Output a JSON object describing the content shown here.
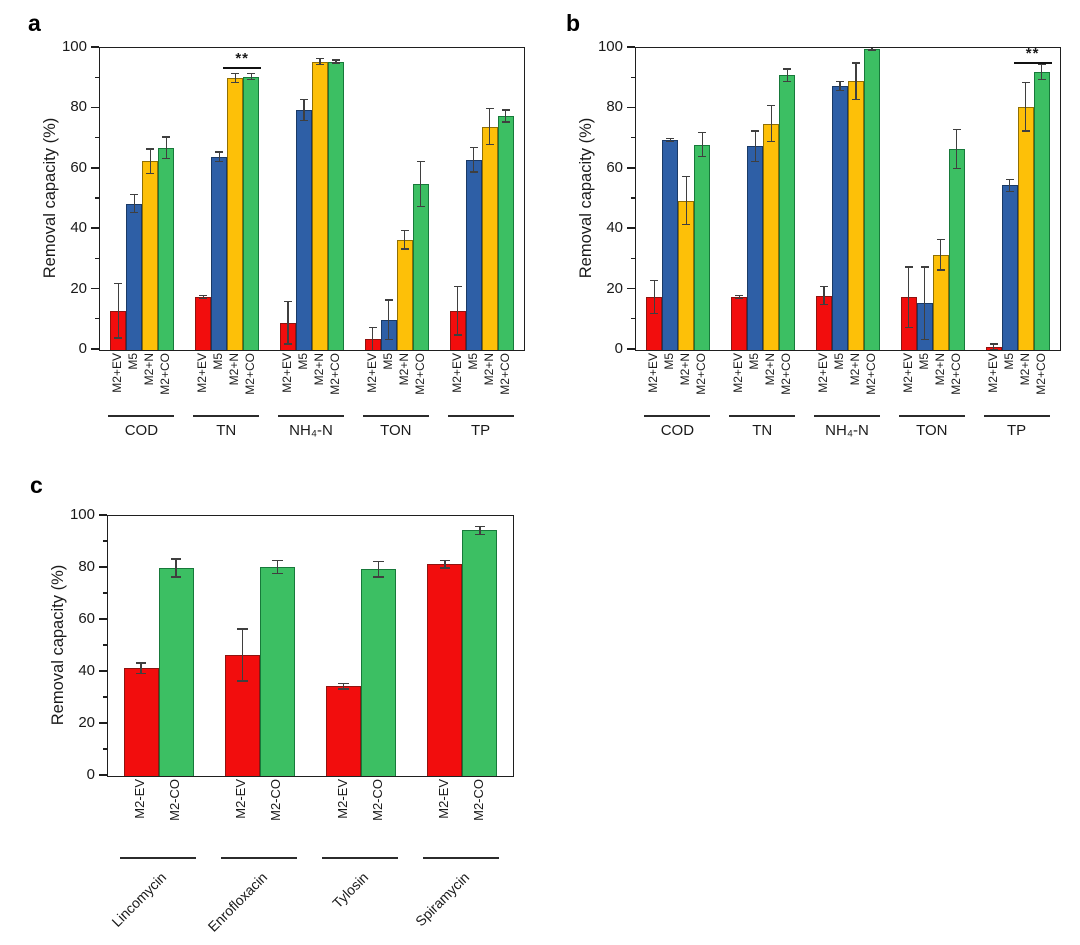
{
  "panels": {
    "a": "a",
    "b": "b",
    "c": "c"
  },
  "style": {
    "axis_color": "#1f1f1f",
    "error_bar_color": "#3f3f3f",
    "red": "#f20d0d",
    "blue": "#2e5fa6",
    "yellow": "#fdc008",
    "green": "#3cbf63"
  },
  "chart_data": [
    {
      "id": "a",
      "panel_label": "a",
      "type": "bar",
      "title": "",
      "xlabel": "",
      "ylabel": "Removal capacity (%)",
      "ylim": [
        0,
        100
      ],
      "yticks": [
        0,
        20,
        40,
        60,
        80,
        100
      ],
      "minor_tick_step": 10,
      "grid": false,
      "legend": "none",
      "categories": [
        "COD",
        "TN",
        "NH₄-N",
        "TON",
        "TP"
      ],
      "series": [
        {
          "name": "M2+EV",
          "color": "#f20d0d",
          "edge": "#8f1410",
          "values": [
            13,
            17.5,
            9,
            3.5,
            13
          ],
          "errors": [
            9,
            0.5,
            7,
            4,
            8
          ]
        },
        {
          "name": "M5",
          "color": "#2e5fa6",
          "edge": "#1a3a66",
          "values": [
            48.5,
            64,
            79.5,
            10,
            63
          ],
          "errors": [
            3,
            1.5,
            3.5,
            6.5,
            4
          ]
        },
        {
          "name": "M2+N",
          "color": "#fdc008",
          "edge": "#8f6f05",
          "values": [
            62.5,
            90,
            95.5,
            36.5,
            74
          ],
          "errors": [
            4,
            1.5,
            1,
            3,
            6
          ]
        },
        {
          "name": "M2+CO",
          "color": "#3cbf63",
          "edge": "#17793a",
          "values": [
            67,
            90.5,
            95.5,
            55,
            77.5
          ],
          "errors": [
            3.5,
            1,
            0.5,
            7.5,
            2
          ]
        }
      ],
      "significance": {
        "label": "**",
        "category": "TN",
        "series_from": 2,
        "series_to": 3,
        "y": 93.5
      }
    },
    {
      "id": "b",
      "panel_label": "b",
      "type": "bar",
      "title": "",
      "xlabel": "",
      "ylabel": "Removal capacity (%)",
      "ylim": [
        0,
        100
      ],
      "yticks": [
        0,
        20,
        40,
        60,
        80,
        100
      ],
      "minor_tick_step": 10,
      "grid": false,
      "legend": "none",
      "categories": [
        "COD",
        "TN",
        "NH₄-N",
        "TON",
        "TP"
      ],
      "series": [
        {
          "name": "M2+EV",
          "color": "#f20d0d",
          "edge": "#8f1410",
          "values": [
            17.5,
            17.5,
            18,
            17.5,
            1
          ],
          "errors": [
            5.5,
            0.5,
            3,
            10,
            1
          ]
        },
        {
          "name": "M5",
          "color": "#2e5fa6",
          "edge": "#1a3a66",
          "values": [
            69.5,
            67.5,
            87.5,
            15.5,
            54.5
          ],
          "errors": [
            0.5,
            5,
            1.5,
            12,
            2
          ]
        },
        {
          "name": "M2+N",
          "color": "#fdc008",
          "edge": "#8f6f05",
          "values": [
            49.5,
            75,
            89,
            31.5,
            80.5
          ],
          "errors": [
            8,
            6,
            6,
            5,
            8
          ]
        },
        {
          "name": "M2+CO",
          "color": "#3cbf63",
          "edge": "#17793a",
          "values": [
            68,
            91,
            99.8,
            66.5,
            92
          ],
          "errors": [
            4,
            2,
            0.4,
            6.5,
            2.5
          ]
        }
      ],
      "significance": {
        "label": "**",
        "category": "TP",
        "series_from": 2,
        "series_to": 3,
        "y": 95
      }
    },
    {
      "id": "c",
      "panel_label": "c",
      "type": "bar",
      "title": "",
      "xlabel": "",
      "ylabel": "Removal capacity (%)",
      "ylim": [
        0,
        100
      ],
      "yticks": [
        0,
        20,
        40,
        60,
        80,
        100
      ],
      "minor_tick_step": 10,
      "grid": false,
      "legend": "none",
      "categories": [
        "Lincomycin",
        "Enrofloxacin",
        "Tylosin",
        "Spiramycin"
      ],
      "series": [
        {
          "name": "M2-EV",
          "color": "#f20d0d",
          "edge": "#8f1410",
          "values": [
            41.5,
            46.5,
            34.5,
            81.5
          ],
          "errors": [
            2,
            10,
            1,
            1.5
          ]
        },
        {
          "name": "M2-CO",
          "color": "#3cbf63",
          "edge": "#17793a",
          "values": [
            80,
            80.5,
            79.5,
            94.5
          ],
          "errors": [
            3.5,
            2.5,
            3,
            1.5
          ]
        }
      ],
      "significance": null
    }
  ]
}
